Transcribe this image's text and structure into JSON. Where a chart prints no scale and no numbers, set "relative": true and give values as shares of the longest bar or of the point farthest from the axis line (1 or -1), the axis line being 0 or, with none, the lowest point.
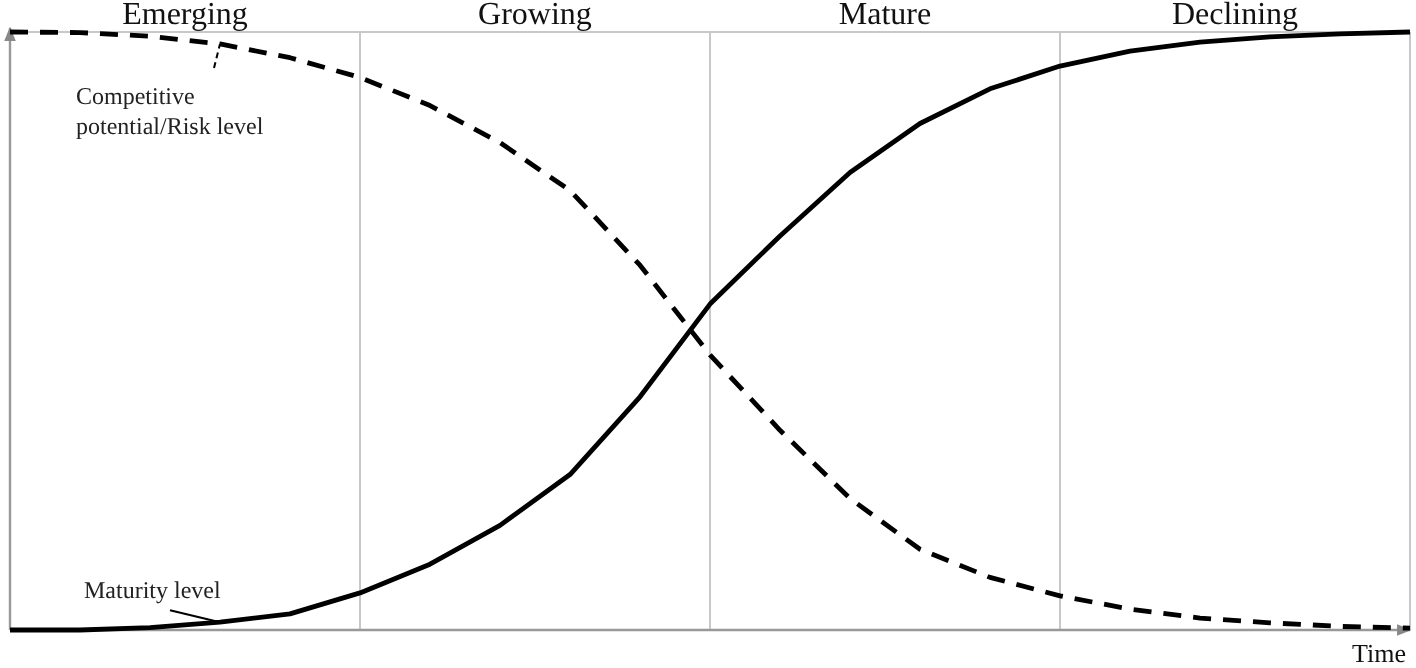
{
  "chart_data": {
    "type": "line",
    "relative": true,
    "xlabel": "Time",
    "grid": "x",
    "categories": [
      null,
      null,
      null,
      null,
      null,
      null,
      null,
      null,
      null,
      null,
      null,
      null,
      null,
      null,
      null,
      null,
      null,
      null,
      null,
      null,
      null
    ],
    "series": [
      {
        "name": "Maturity level",
        "color": "#000000",
        "line_style": "solid",
        "values": [
          0,
          0,
          0.004,
          0.013,
          0.027,
          0.062,
          0.11,
          0.175,
          0.26,
          0.39,
          0.545,
          0.659,
          0.765,
          0.847,
          0.905,
          0.943,
          0.968,
          0.983,
          0.992,
          0.997,
          1
        ]
      },
      {
        "name": "Competitive potential/Risk level",
        "color": "#000000",
        "line_style": "dashed",
        "values": [
          1,
          0.999,
          0.993,
          0.98,
          0.957,
          0.924,
          0.877,
          0.815,
          0.735,
          0.61,
          0.46,
          0.334,
          0.22,
          0.135,
          0.088,
          0.057,
          0.035,
          0.02,
          0.012,
          0.006,
          0.003
        ]
      }
    ],
    "annotations": [
      "Emerging",
      "Growing",
      "Mature",
      "Declining"
    ]
  }
}
